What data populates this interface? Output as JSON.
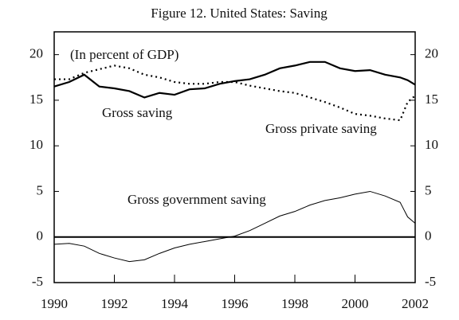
{
  "chart_data": {
    "type": "line",
    "title": "Figure 12. United States: Saving",
    "subtitle": "(In percent of GDP)",
    "x": [
      1990,
      1990.5,
      1991,
      1991.5,
      1992,
      1992.5,
      1993,
      1993.5,
      1994,
      1994.5,
      1995,
      1995.5,
      1996,
      1996.5,
      1997,
      1997.5,
      1998,
      1998.5,
      1999,
      1999.5,
      2000,
      2000.5,
      2001,
      2001.5,
      2001.75,
      2002
    ],
    "series": [
      {
        "name": "Gross saving",
        "color": "#000000",
        "style": "solid",
        "values": [
          16.5,
          17,
          17.8,
          16.5,
          16.3,
          16,
          15.3,
          15.8,
          15.6,
          16.2,
          16.3,
          16.8,
          17.1,
          17.3,
          17.8,
          18.5,
          18.8,
          19.2,
          19.2,
          18.5,
          18.2,
          18.3,
          17.8,
          17.5,
          17.2,
          16.7
        ]
      },
      {
        "name": "Gross private saving",
        "color": "#000000",
        "style": "dotted",
        "values": [
          17.3,
          17.3,
          18,
          18.4,
          18.8,
          18.5,
          17.8,
          17.5,
          17,
          16.8,
          16.8,
          17,
          17,
          16.6,
          16.3,
          16,
          15.8,
          15.3,
          14.8,
          14.2,
          13.5,
          13.3,
          13,
          12.8,
          14.8,
          15.5
        ]
      },
      {
        "name": "Gross government  saving",
        "color": "#000000",
        "style": "thin",
        "values": [
          -0.8,
          -0.7,
          -1,
          -1.8,
          -2.3,
          -2.7,
          -2.5,
          -1.8,
          -1.2,
          -0.8,
          -0.5,
          -0.2,
          0.1,
          0.7,
          1.5,
          2.3,
          2.8,
          3.5,
          4,
          4.3,
          4.7,
          5,
          4.5,
          3.8,
          2.2,
          1.5
        ]
      }
    ],
    "xlim": [
      1990,
      2002
    ],
    "xticks": [
      1990,
      1992,
      1994,
      1996,
      1998,
      2000,
      2002
    ],
    "ylim": [
      -5,
      22.5
    ],
    "yticks": [
      -5,
      0,
      5,
      10,
      15,
      20
    ],
    "zero_line": true,
    "grid": false
  }
}
